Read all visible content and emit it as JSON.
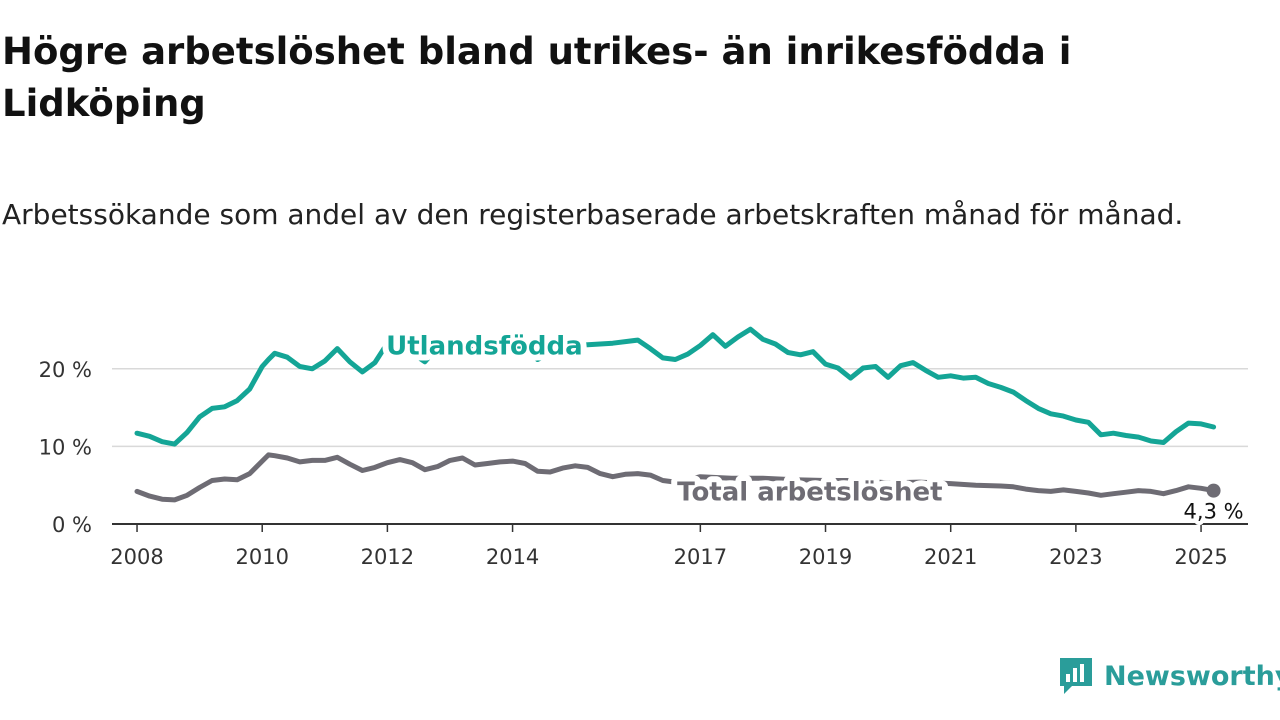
{
  "title": "Högre arbetslöshet bland utrikes- än inrikesfödda i Lidköping",
  "subtitle": "Arbetssökande som andel av den registerbaserade arbetskraften månad för månad.",
  "brand": {
    "name": "Newsworthy",
    "color": "#2a9d9a"
  },
  "chart_data": {
    "type": "line",
    "title": "Högre arbetslöshet bland utrikes- än inrikesfödda i Lidköping",
    "subtitle": "Arbetssökande som andel av den registerbaserade arbetskraften månad för månad.",
    "xlabel": "",
    "ylabel": "",
    "x_tick_labels": [
      "2008",
      "2010",
      "2012",
      "2014",
      "2017",
      "2019",
      "2021",
      "2023",
      "2025"
    ],
    "y_tick_labels": [
      "0 %",
      "10 %",
      "20 %"
    ],
    "y_ticks": [
      0,
      10,
      20
    ],
    "ylim": [
      0,
      25
    ],
    "xlim": [
      2007.6,
      2025.75
    ],
    "grid": true,
    "legend": "direct labels on lines",
    "series": [
      {
        "name": "Utlandsfödda",
        "color": "#14a596",
        "points": [
          [
            2008.0,
            11.7
          ],
          [
            2008.2,
            11.3
          ],
          [
            2008.4,
            10.6
          ],
          [
            2008.6,
            10.3
          ],
          [
            2008.8,
            11.8
          ],
          [
            2009.0,
            13.8
          ],
          [
            2009.2,
            14.9
          ],
          [
            2009.4,
            15.1
          ],
          [
            2009.6,
            15.9
          ],
          [
            2009.8,
            17.4
          ],
          [
            2010.0,
            20.3
          ],
          [
            2010.1,
            21.2
          ],
          [
            2010.2,
            22.0
          ],
          [
            2010.4,
            21.5
          ],
          [
            2010.6,
            20.3
          ],
          [
            2010.8,
            20.0
          ],
          [
            2011.0,
            21.0
          ],
          [
            2011.2,
            22.6
          ],
          [
            2011.4,
            20.9
          ],
          [
            2011.6,
            19.6
          ],
          [
            2011.8,
            20.8
          ],
          [
            2012.0,
            23.3
          ],
          [
            2012.2,
            24.4
          ],
          [
            2012.4,
            22.0
          ],
          [
            2012.6,
            20.9
          ],
          [
            2012.8,
            22.8
          ],
          [
            2013.0,
            23.9
          ],
          [
            2013.4,
            22.3
          ],
          [
            2013.8,
            23.4
          ],
          [
            2014.2,
            22.5
          ],
          [
            2014.4,
            21.2
          ],
          [
            2014.8,
            22.7
          ],
          [
            2015.2,
            23.1
          ],
          [
            2015.6,
            23.3
          ],
          [
            2016.0,
            23.7
          ],
          [
            2016.2,
            22.6
          ],
          [
            2016.4,
            21.4
          ],
          [
            2016.6,
            21.2
          ],
          [
            2016.8,
            21.9
          ],
          [
            2017.0,
            23.0
          ],
          [
            2017.2,
            24.4
          ],
          [
            2017.4,
            22.9
          ],
          [
            2017.6,
            24.1
          ],
          [
            2017.8,
            25.1
          ],
          [
            2018.0,
            23.8
          ],
          [
            2018.2,
            23.2
          ],
          [
            2018.4,
            22.1
          ],
          [
            2018.6,
            21.8
          ],
          [
            2018.8,
            22.2
          ],
          [
            2019.0,
            20.6
          ],
          [
            2019.2,
            20.1
          ],
          [
            2019.4,
            18.8
          ],
          [
            2019.6,
            20.1
          ],
          [
            2019.8,
            20.3
          ],
          [
            2020.0,
            18.9
          ],
          [
            2020.2,
            20.4
          ],
          [
            2020.4,
            20.8
          ],
          [
            2020.6,
            19.8
          ],
          [
            2020.8,
            18.9
          ],
          [
            2021.0,
            19.1
          ],
          [
            2021.2,
            18.8
          ],
          [
            2021.4,
            18.9
          ],
          [
            2021.6,
            18.1
          ],
          [
            2021.8,
            17.6
          ],
          [
            2022.0,
            17.0
          ],
          [
            2022.2,
            15.9
          ],
          [
            2022.4,
            14.9
          ],
          [
            2022.6,
            14.2
          ],
          [
            2022.8,
            13.9
          ],
          [
            2023.0,
            13.4
          ],
          [
            2023.2,
            13.1
          ],
          [
            2023.4,
            11.5
          ],
          [
            2023.6,
            11.7
          ],
          [
            2023.8,
            11.4
          ],
          [
            2024.0,
            11.2
          ],
          [
            2024.2,
            10.7
          ],
          [
            2024.4,
            10.5
          ],
          [
            2024.6,
            11.9
          ],
          [
            2024.8,
            13.0
          ],
          [
            2025.0,
            12.9
          ],
          [
            2025.2,
            12.5
          ]
        ]
      },
      {
        "name": "Total arbetslöshet",
        "color": "#6e6c74",
        "end_label": "4,3 %",
        "points": [
          [
            2008.0,
            4.2
          ],
          [
            2008.2,
            3.6
          ],
          [
            2008.4,
            3.2
          ],
          [
            2008.6,
            3.1
          ],
          [
            2008.8,
            3.7
          ],
          [
            2009.0,
            4.7
          ],
          [
            2009.2,
            5.6
          ],
          [
            2009.4,
            5.8
          ],
          [
            2009.6,
            5.7
          ],
          [
            2009.8,
            6.5
          ],
          [
            2010.0,
            8.1
          ],
          [
            2010.1,
            8.9
          ],
          [
            2010.2,
            8.8
          ],
          [
            2010.4,
            8.5
          ],
          [
            2010.6,
            8.0
          ],
          [
            2010.8,
            8.2
          ],
          [
            2011.0,
            8.2
          ],
          [
            2011.2,
            8.6
          ],
          [
            2011.4,
            7.7
          ],
          [
            2011.6,
            6.9
          ],
          [
            2011.8,
            7.3
          ],
          [
            2012.0,
            7.9
          ],
          [
            2012.2,
            8.3
          ],
          [
            2012.4,
            7.9
          ],
          [
            2012.6,
            7.0
          ],
          [
            2012.8,
            7.4
          ],
          [
            2013.0,
            8.2
          ],
          [
            2013.2,
            8.5
          ],
          [
            2013.4,
            7.6
          ],
          [
            2013.6,
            7.8
          ],
          [
            2013.8,
            8.0
          ],
          [
            2014.0,
            8.1
          ],
          [
            2014.2,
            7.8
          ],
          [
            2014.4,
            6.8
          ],
          [
            2014.6,
            6.7
          ],
          [
            2014.8,
            7.2
          ],
          [
            2015.0,
            7.5
          ],
          [
            2015.2,
            7.3
          ],
          [
            2015.4,
            6.5
          ],
          [
            2015.6,
            6.1
          ],
          [
            2015.8,
            6.4
          ],
          [
            2016.0,
            6.5
          ],
          [
            2016.2,
            6.3
          ],
          [
            2016.4,
            5.6
          ],
          [
            2016.6,
            5.4
          ],
          [
            2016.8,
            5.7
          ],
          [
            2017.0,
            6.1
          ],
          [
            2017.5,
            5.9
          ],
          [
            2018.0,
            5.9
          ],
          [
            2018.5,
            5.7
          ],
          [
            2019.0,
            5.6
          ],
          [
            2019.5,
            5.6
          ],
          [
            2020.0,
            5.3
          ],
          [
            2020.5,
            5.4
          ],
          [
            2021.0,
            5.2
          ],
          [
            2021.4,
            5.0
          ],
          [
            2021.8,
            4.9
          ],
          [
            2022.0,
            4.8
          ],
          [
            2022.2,
            4.5
          ],
          [
            2022.4,
            4.3
          ],
          [
            2022.6,
            4.2
          ],
          [
            2022.8,
            4.4
          ],
          [
            2023.0,
            4.2
          ],
          [
            2023.2,
            4.0
          ],
          [
            2023.4,
            3.7
          ],
          [
            2023.6,
            3.9
          ],
          [
            2023.8,
            4.1
          ],
          [
            2024.0,
            4.3
          ],
          [
            2024.2,
            4.2
          ],
          [
            2024.4,
            3.9
          ],
          [
            2024.6,
            4.3
          ],
          [
            2024.8,
            4.8
          ],
          [
            2025.0,
            4.6
          ],
          [
            2025.2,
            4.3
          ]
        ]
      }
    ]
  }
}
